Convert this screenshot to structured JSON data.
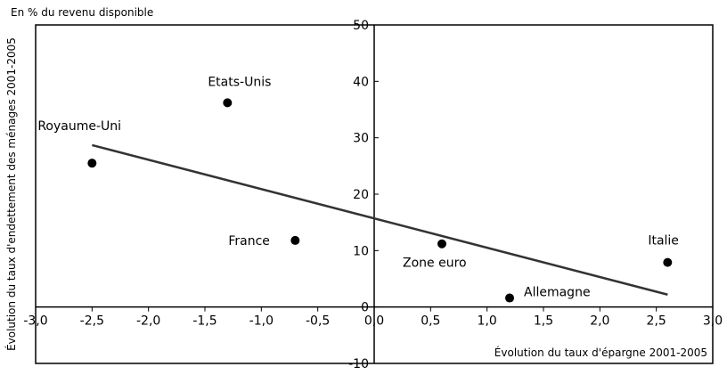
{
  "chart_data": {
    "type": "scatter",
    "title": "",
    "subtitle": "En % du revenu disponible",
    "xlabel": "Évolution du taux d'épargne 2001-2005",
    "ylabel": "Évolution du taux d'endettement des ménages 2001-2005",
    "xlim": [
      -3.0,
      3.0
    ],
    "ylim": [
      -10,
      50
    ],
    "x_ticks": [
      -3.0,
      -2.5,
      -2.0,
      -1.5,
      -1.0,
      -0.5,
      0.0,
      0.5,
      1.0,
      1.5,
      2.0,
      2.5,
      3.0
    ],
    "x_tick_labels": [
      "-3,0",
      "-2,5",
      "-2,0",
      "-1,5",
      "-1,0",
      "-0,5",
      "0,0",
      "0,5",
      "1,0",
      "1,5",
      "2,0",
      "2,5",
      "3,0"
    ],
    "y_ticks": [
      -10,
      0,
      10,
      20,
      30,
      40,
      50
    ],
    "y_tick_labels": [
      "-10",
      "0",
      "10",
      "20",
      "30",
      "40",
      "50"
    ],
    "grid": false,
    "points": [
      {
        "label": "Royaume-Uni",
        "x": -2.5,
        "y": 25.5
      },
      {
        "label": "Etats-Unis",
        "x": -1.3,
        "y": 36.2
      },
      {
        "label": "France",
        "x": -0.7,
        "y": 11.8
      },
      {
        "label": "Zone euro",
        "x": 0.6,
        "y": 11.2
      },
      {
        "label": "Allemagne",
        "x": 1.2,
        "y": 1.6
      },
      {
        "label": "Italie",
        "x": 2.6,
        "y": 7.9
      }
    ],
    "trendline": {
      "x": [
        -2.5,
        2.6
      ],
      "y": [
        28.7,
        2.2
      ]
    }
  }
}
